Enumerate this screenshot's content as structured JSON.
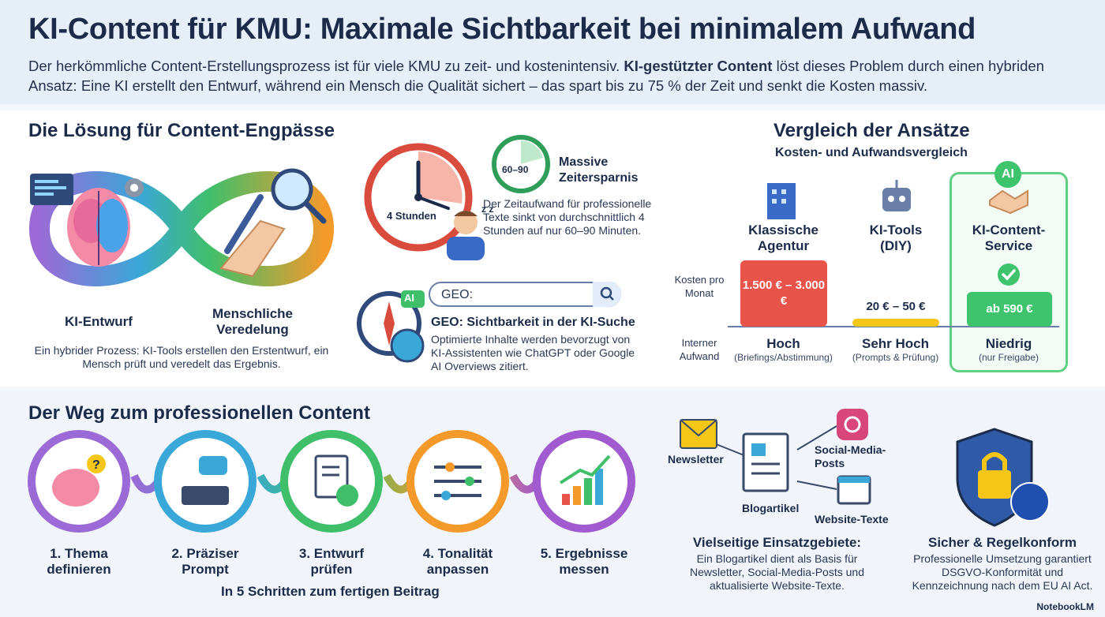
{
  "header": {
    "title": "KI-Content für KMU: Maximale Sichtbarkeit bei minimalem Aufwand",
    "intro_part1": "Der herkömmliche Content-Erstellungsprozess ist für viele KMU zu zeit- und kostenintensiv. ",
    "intro_bold": "KI-gestützter Content",
    "intro_part2": " löst dieses Problem durch einen hybriden Ansatz: Eine KI erstellt den Entwurf, während ein Mensch die Qualität sichert – das spart bis zu 75 % der Zeit und senkt die Kosten massiv."
  },
  "solution": {
    "heading": "Die Lösung für Content-Engpässe",
    "left_label": "KI-Entwurf",
    "right_label": "Menschliche Veredelung",
    "description": "Ein hybrider Prozess: KI-Tools erstellen den Erstentwurf, ein Mensch prüft und veredelt das Ergebnis."
  },
  "time": {
    "clock_label": "4 Stunden",
    "small_clock_label": "60–90",
    "heading": "Massive Zeitersparnis",
    "text": "Der Zeitaufwand für professionelle Texte sinkt von durchschnittlich 4 Stunden auf nur 60–90 Minuten.",
    "zzz": "z z"
  },
  "geo": {
    "search_text": "GEO:",
    "ai_badge": "AI",
    "heading": "GEO: Sichtbarkeit in der KI-Suche",
    "text": "Optimierte Inhalte werden bevorzugt von KI-Assistenten wie ChatGPT oder Google AI Overviews zitiert."
  },
  "comparison": {
    "heading": "Vergleich der Ansätze",
    "subheading": "Kosten- und Aufwandsvergleich",
    "row_cost": "Kosten pro Monat",
    "row_effort": "Interner Aufwand",
    "ai_badge": "AI",
    "columns": [
      {
        "title": "Klassische Agentur",
        "cost": "1.500 € – 3.000 €",
        "effort": "Hoch",
        "effort_sub": "(Briefings/Abstimmung)",
        "color": "#e8544a"
      },
      {
        "title": "KI-Tools (DIY)",
        "cost": "20 € – 50 €",
        "effort": "Sehr Hoch",
        "effort_sub": "(Prompts & Prüfung)",
        "color": "#f5c518"
      },
      {
        "title": "KI-Content-Service",
        "cost": "ab 590 €",
        "effort": "Niedrig",
        "effort_sub": "(nur Freigabe)",
        "color": "#3ec46d"
      }
    ]
  },
  "path": {
    "heading": "Der Weg zum professionellen Content",
    "steps": [
      {
        "label": "1. Thema definieren",
        "color": "#9b6ad6"
      },
      {
        "label": "2. Präziser Prompt",
        "color": "#3aa7d9"
      },
      {
        "label": "3. Entwurf prüfen",
        "color": "#3fbf6a"
      },
      {
        "label": "4. Tonalität anpassen",
        "color": "#f39a2b"
      },
      {
        "label": "5. Ergebnisse messen",
        "color": "#a15ad0"
      }
    ],
    "caption": "In 5 Schritten zum fertigen Beitrag"
  },
  "uses": {
    "newsletter": "Newsletter",
    "social": "Social-Media-Posts",
    "blog": "Blogartikel",
    "website": "Website-Texte",
    "heading": "Vielseitige Einsatzgebiete:",
    "text": "Ein Blogartikel dient als Basis für Newsletter, Social-Media-Posts und aktualisierte Website-Texte."
  },
  "secure": {
    "heading": "Sicher & Regelkonform",
    "text": "Professionelle Umsetzung garantiert DSGVO-Konformität und Kennzeichnung nach dem EU AI Act."
  },
  "brand": "NotebookLM"
}
